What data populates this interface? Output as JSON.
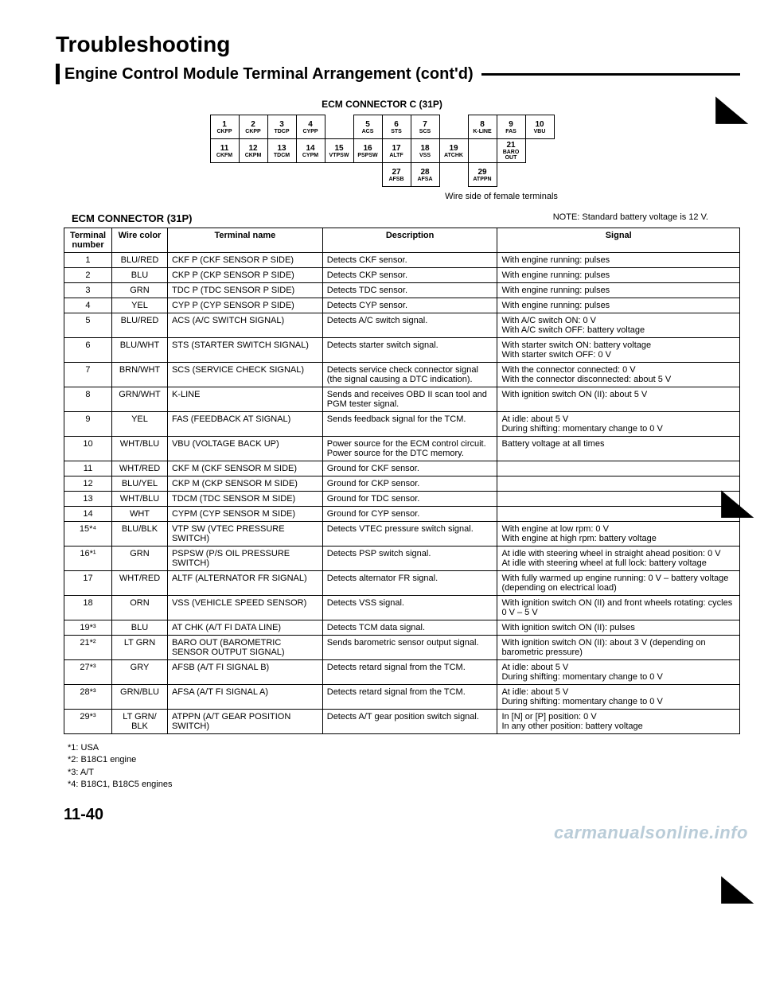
{
  "heading": "Troubleshooting",
  "subheading": "Engine Control Module Terminal Arrangement (cont'd)",
  "connector_label": "ECM CONNECTOR C (31P)",
  "diagram": {
    "row1_num": [
      "1",
      "2",
      "3",
      "4",
      "",
      "5",
      "6",
      "7",
      "",
      "8",
      "9",
      "10"
    ],
    "row1_lbl": [
      "CKFP",
      "CKPP",
      "TDCP",
      "CYPP",
      "",
      "ACS",
      "STS",
      "SCS",
      "",
      "K-LINE",
      "FAS",
      "VBU"
    ],
    "row2_num": [
      "11",
      "12",
      "13",
      "14",
      "15",
      "16",
      "17",
      "18",
      "19",
      "",
      "21",
      ""
    ],
    "row2_lbl": [
      "CKFM",
      "CKPM",
      "TDCM",
      "CYPM",
      "VTPSW",
      "PSPSW",
      "ALTF",
      "VSS",
      "ATCHK",
      "",
      "BARO OUT",
      ""
    ],
    "row3": [
      "",
      "",
      "",
      "",
      "",
      "",
      "27",
      "28",
      "",
      "29",
      "",
      ""
    ],
    "row3_lbl": [
      "",
      "",
      "",
      "",
      "",
      "",
      "AFSB",
      "AFSA",
      "",
      "ATPPN",
      "",
      ""
    ]
  },
  "wire_note": "Wire side of female terminals",
  "ecm_title": "ECM CONNECTOR (31P)",
  "note": "NOTE: Standard battery voltage is 12 V.",
  "columns": [
    "Terminal number",
    "Wire color",
    "Terminal name",
    "Description",
    "Signal"
  ],
  "rows": [
    {
      "n": "1",
      "c": "BLU/RED",
      "name": "CKF P (CKF SENSOR P SIDE)",
      "desc": "Detects CKF sensor.",
      "sig": "With engine running: pulses"
    },
    {
      "n": "2",
      "c": "BLU",
      "name": "CKP P (CKP SENSOR P SIDE)",
      "desc": "Detects CKP sensor.",
      "sig": "With engine running: pulses"
    },
    {
      "n": "3",
      "c": "GRN",
      "name": "TDC P (TDC SENSOR P SIDE)",
      "desc": "Detects TDC sensor.",
      "sig": "With engine running: pulses"
    },
    {
      "n": "4",
      "c": "YEL",
      "name": "CYP P (CYP SENSOR P SIDE)",
      "desc": "Detects CYP sensor.",
      "sig": "With engine running: pulses"
    },
    {
      "n": "5",
      "c": "BLU/RED",
      "name": "ACS (A/C SWITCH SIGNAL)",
      "desc": "Detects A/C switch signal.",
      "sig": "With A/C switch ON: 0 V\nWith A/C switch OFF: battery voltage"
    },
    {
      "n": "6",
      "c": "BLU/WHT",
      "name": "STS (STARTER SWITCH SIGNAL)",
      "desc": "Detects starter switch signal.",
      "sig": "With starter switch ON: battery voltage\nWith starter switch OFF: 0 V"
    },
    {
      "n": "7",
      "c": "BRN/WHT",
      "name": "SCS (SERVICE CHECK SIGNAL)",
      "desc": "Detects service check connector signal (the signal causing a DTC indication).",
      "sig": "With the connector connected: 0 V\nWith the connector disconnected: about 5 V"
    },
    {
      "n": "8",
      "c": "GRN/WHT",
      "name": "K-LINE",
      "desc": "Sends and receives OBD II scan tool and PGM tester signal.",
      "sig": "With ignition switch ON (II): about 5 V"
    },
    {
      "n": "9",
      "c": "YEL",
      "name": "FAS (FEEDBACK AT SIGNAL)",
      "desc": "Sends feedback signal for the TCM.",
      "sig": "At idle: about 5 V\nDuring shifting: momentary change to 0 V"
    },
    {
      "n": "10",
      "c": "WHT/BLU",
      "name": "VBU (VOLTAGE BACK UP)",
      "desc": "Power source for the ECM control circuit.\nPower source for the DTC memory.",
      "sig": "Battery voltage at all times"
    },
    {
      "n": "11",
      "c": "WHT/RED",
      "name": "CKF M (CKF SENSOR M SIDE)",
      "desc": "Ground for CKF sensor.",
      "sig": ""
    },
    {
      "n": "12",
      "c": "BLU/YEL",
      "name": "CKP M (CKP SENSOR M SIDE)",
      "desc": "Ground for CKP sensor.",
      "sig": ""
    },
    {
      "n": "13",
      "c": "WHT/BLU",
      "name": "TDCM (TDC SENSOR M SIDE)",
      "desc": "Ground for TDC sensor.",
      "sig": ""
    },
    {
      "n": "14",
      "c": "WHT",
      "name": "CYPM (CYP SENSOR M SIDE)",
      "desc": "Ground for CYP sensor.",
      "sig": ""
    },
    {
      "n": "15*⁴",
      "c": "BLU/BLK",
      "name": "VTP SW (VTEC PRESSURE SWITCH)",
      "desc": "Detects VTEC pressure switch signal.",
      "sig": "With engine at low rpm: 0 V\nWith engine at high rpm: battery voltage"
    },
    {
      "n": "16*¹",
      "c": "GRN",
      "name": "PSPSW (P/S OIL PRESSURE SWITCH)",
      "desc": "Detects PSP switch signal.",
      "sig": "At idle with steering wheel in straight ahead position: 0 V\nAt idle with steering wheel at full lock: battery voltage"
    },
    {
      "n": "17",
      "c": "WHT/RED",
      "name": "ALTF (ALTERNATOR FR SIGNAL)",
      "desc": "Detects alternator FR signal.",
      "sig": "With fully warmed up engine running: 0 V – battery voltage (depending on electrical load)"
    },
    {
      "n": "18",
      "c": "ORN",
      "name": "VSS (VEHICLE SPEED SENSOR)",
      "desc": "Detects VSS signal.",
      "sig": "With ignition switch ON (II) and front wheels rotating: cycles 0 V – 5 V"
    },
    {
      "n": "19*³",
      "c": "BLU",
      "name": "AT CHK (A/T FI DATA LINE)",
      "desc": "Detects TCM data signal.",
      "sig": "With ignition switch ON (II): pulses"
    },
    {
      "n": "21*²",
      "c": "LT GRN",
      "name": "BARO OUT (BAROMETRIC SENSOR OUTPUT SIGNAL)",
      "desc": "Sends barometric sensor output signal.",
      "sig": "With ignition switch ON (II): about 3 V (depending on barometric pressure)"
    },
    {
      "n": "27*³",
      "c": "GRY",
      "name": "AFSB (A/T FI SIGNAL B)",
      "desc": "Detects retard signal from the TCM.",
      "sig": "At idle: about 5 V\nDuring shifting: momentary change to 0 V"
    },
    {
      "n": "28*³",
      "c": "GRN/BLU",
      "name": "AFSA (A/T FI SIGNAL A)",
      "desc": "Detects retard signal from the TCM.",
      "sig": "At idle: about 5 V\nDuring shifting: momentary change to 0 V"
    },
    {
      "n": "29*³",
      "c": "LT GRN/ BLK",
      "name": "ATPPN (A/T GEAR POSITION SWITCH)",
      "desc": "Detects A/T gear position switch signal.",
      "sig": "In [N] or [P] position: 0 V\nIn any other position: battery voltage"
    }
  ],
  "footnotes": [
    "*1: USA",
    "*2: B18C1 engine",
    "*3: A/T",
    "*4: B18C1, B18C5 engines"
  ],
  "page_number": "11-40",
  "watermark": "carmanualsonline.info",
  "col_widths": [
    "60px",
    "70px",
    "195px",
    "220px",
    "305px"
  ],
  "style": {
    "page_bg": "#ffffff",
    "text_color": "#000000",
    "border_color": "#000000",
    "watermark_color": "#b9ccd8",
    "heading_fontsize": 28,
    "subheading_fontsize": 20,
    "table_fontsize": 11,
    "diagram_fontsize": 9
  }
}
